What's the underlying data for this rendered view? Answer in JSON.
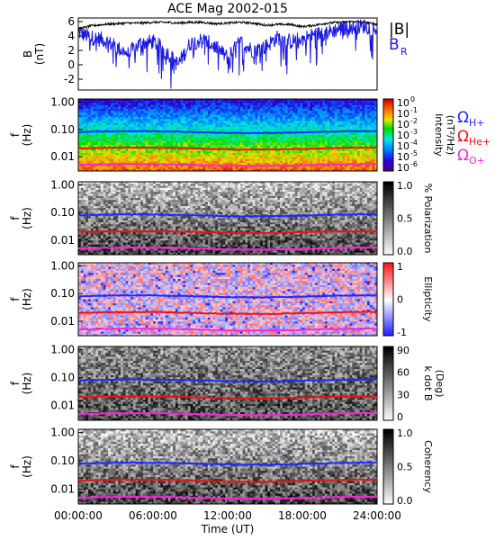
{
  "title": "ACE Mag 2002-015",
  "colors": {
    "btot": "#000000",
    "br": "#1a1adf",
    "h_cyclo": "#1a2aff",
    "he_cyclo": "#ee1111",
    "o_cyclo": "#ff22dd"
  },
  "chart_data": [
    {
      "type": "line",
      "panel": "magnetic-field",
      "ylabel": "B\n(nT)",
      "ylim": [
        -3.5,
        6.5
      ],
      "yticks": [
        "6",
        "4",
        "2",
        "0",
        "-2"
      ],
      "xlim": [
        0,
        24
      ],
      "series": [
        {
          "name": "|B|",
          "x": [
            0,
            1,
            2,
            3,
            4,
            5,
            6,
            7,
            8,
            9,
            10,
            11,
            12,
            13,
            14,
            15,
            16,
            17,
            18,
            19,
            20,
            21,
            22,
            23,
            24
          ],
          "values": [
            5.0,
            5.4,
            5.6,
            5.7,
            5.8,
            5.8,
            5.9,
            5.9,
            5.8,
            5.9,
            5.9,
            5.7,
            5.8,
            5.9,
            5.8,
            5.5,
            5.6,
            5.6,
            5.3,
            5.5,
            5.8,
            5.9,
            6.0,
            5.9,
            5.6
          ]
        },
        {
          "name": "B_R",
          "x": [
            0,
            1,
            2,
            3,
            4,
            5,
            6,
            7,
            8,
            9,
            10,
            11,
            12,
            13,
            14,
            15,
            16,
            17,
            18,
            19,
            20,
            21,
            22,
            23,
            24
          ],
          "values": [
            4.5,
            3.8,
            3.5,
            2.5,
            1.5,
            3.0,
            3.2,
            2.0,
            0.0,
            3.0,
            3.5,
            2.5,
            1.0,
            3.2,
            2.0,
            2.5,
            3.8,
            3.2,
            3.6,
            4.2,
            4.5,
            5.0,
            5.2,
            5.4,
            5.0
          ]
        }
      ],
      "legend": [
        "|B|",
        "B",
        "R"
      ]
    },
    {
      "type": "heatmap",
      "panel": "intensity",
      "ylabel": "f\n(Hz)",
      "yticks": [
        "1.00",
        "0.10",
        "0.01"
      ],
      "colorbar_label": "Intensity\n(nT²/Hz)",
      "colorbar_ticks": [
        "10",
        "10",
        "10",
        "10",
        "10",
        "10",
        "10"
      ],
      "colorbar_exponents": [
        "0",
        "-1",
        "-2",
        "-3",
        "-4",
        "-5",
        "-6"
      ],
      "cyclotron_labels": [
        {
          "main": "Ω",
          "sub": "H+"
        },
        {
          "main": "Ω",
          "sub": "He+"
        },
        {
          "main": "Ω",
          "sub": "O+"
        }
      ]
    },
    {
      "type": "heatmap",
      "panel": "polarization",
      "ylabel": "f\n(Hz)",
      "yticks": [
        "1.00",
        "0.10",
        "0.01"
      ],
      "colorbar_label": "% Polarization",
      "colorbar_ticks": [
        "1.0",
        "0.5",
        "0.0"
      ]
    },
    {
      "type": "heatmap",
      "panel": "ellipticity",
      "ylabel": "f\n(Hz)",
      "yticks": [
        "1.00",
        "0.10",
        "0.01"
      ],
      "colorbar_label": "Ellipticity",
      "colorbar_ticks": [
        "1",
        "0",
        "-1"
      ]
    },
    {
      "type": "heatmap",
      "panel": "k-dot-b",
      "ylabel": "f\n(Hz)",
      "yticks": [
        "1.00",
        "0.10",
        "0.01"
      ],
      "colorbar_label": "k dot B\n(Deg)",
      "colorbar_ticks": [
        "90",
        "60",
        "30",
        "0"
      ]
    },
    {
      "type": "heatmap",
      "panel": "coherency",
      "ylabel": "f\n(Hz)",
      "yticks": [
        "1.00",
        "0.10",
        "0.01"
      ],
      "colorbar_label": "Coherency",
      "colorbar_ticks": [
        "1.0",
        "0.5",
        "0.0"
      ]
    }
  ],
  "cyclotron_freqs_hz": {
    "H+": 0.08,
    "He+": 0.02,
    "O+": 0.005
  },
  "xaxis": {
    "ticks": [
      "00:00:00",
      "06:00:00",
      "12:00:00",
      "18:00:00",
      "24:00:00"
    ],
    "label": "Time (UT)"
  }
}
